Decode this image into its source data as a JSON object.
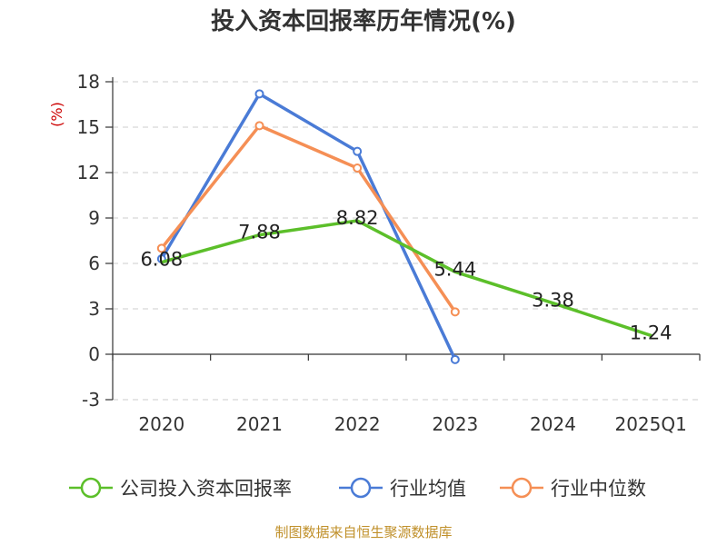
{
  "title": "投入资本回报率历年情况(%)",
  "source": "制图数据来自恒生聚源数据库",
  "chart_data": {
    "type": "line",
    "title": "投入资本回报率历年情况(%)",
    "ylabel": "(%)",
    "xlabel": "",
    "ylim": [
      -3,
      18
    ],
    "yticks": [
      -3,
      0,
      3,
      6,
      9,
      12,
      15,
      18
    ],
    "ytick_labels": [
      "-3",
      "0",
      "3",
      "6",
      "9",
      "12",
      "15",
      "18"
    ],
    "grid": true,
    "legend_position": "bottom",
    "categories": [
      "2020",
      "2021",
      "2022",
      "2023",
      "2024",
      "2025Q1"
    ],
    "series": [
      {
        "name": "公司投入资本回报率",
        "color": "#5cbf2a",
        "values": [
          6.08,
          7.88,
          8.82,
          5.44,
          3.38,
          1.24
        ],
        "labels": [
          "6.08",
          "7.88",
          "8.82",
          "5.44",
          "3.38",
          "1.24"
        ],
        "show_markers": false
      },
      {
        "name": "行业均值",
        "color": "#4a7bd6",
        "values": [
          6.3,
          17.2,
          13.4,
          -0.35,
          null,
          null
        ],
        "show_markers": true
      },
      {
        "name": "行业中位数",
        "color": "#f58f55",
        "values": [
          7.0,
          15.1,
          12.3,
          2.8,
          null,
          null
        ],
        "show_markers": true
      }
    ]
  }
}
